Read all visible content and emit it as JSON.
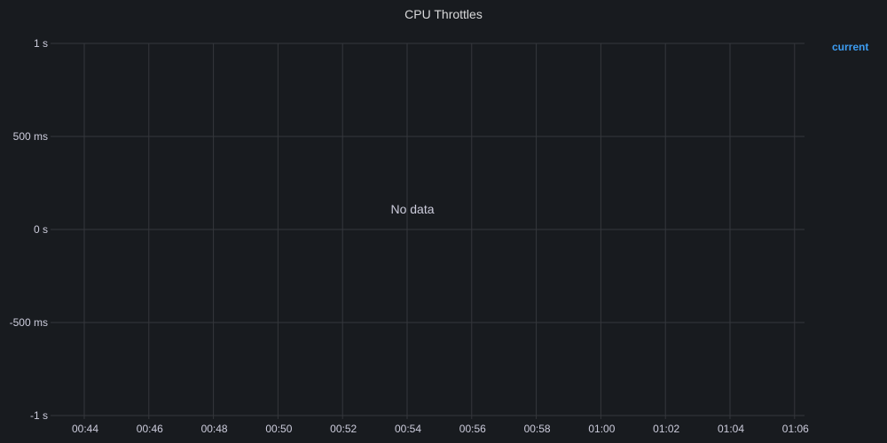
{
  "panel": {
    "title": "CPU Throttles",
    "legend": [
      {
        "name": "current",
        "color": "#3d9df2"
      }
    ],
    "empty_message": "No data"
  },
  "colors": {
    "background": "#181b1f",
    "grid": "#35373c",
    "text": "#ccccdc",
    "accent": "#3d9df2"
  },
  "chart_data": {
    "type": "line",
    "title": "CPU Throttles",
    "xlabel": "",
    "ylabel": "",
    "x_ticks": [
      "00:44",
      "00:46",
      "00:48",
      "00:50",
      "00:52",
      "00:54",
      "00:56",
      "00:58",
      "01:00",
      "01:02",
      "01:04",
      "01:06"
    ],
    "y_ticks": [
      "1 s",
      "500 ms",
      "0 s",
      "-500 ms",
      "-1 s"
    ],
    "ylim": [
      "-1 s",
      "1 s"
    ],
    "series": [
      {
        "name": "current",
        "values": []
      }
    ],
    "grid": true,
    "legend_position": "right"
  }
}
